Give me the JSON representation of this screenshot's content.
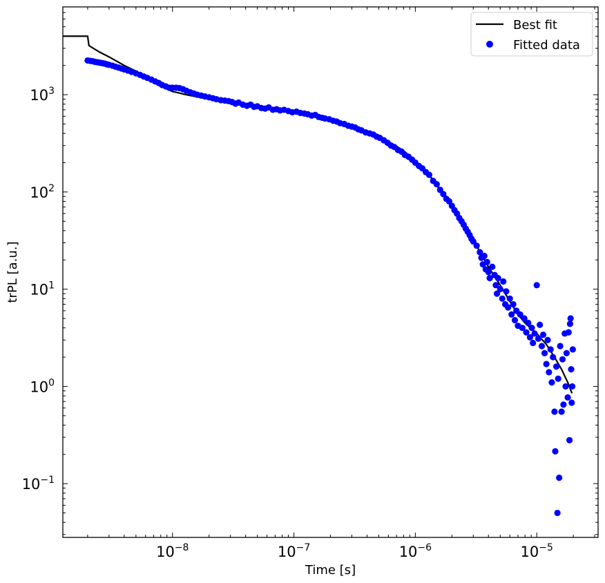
{
  "chart_data": {
    "type": "scatter",
    "title": "",
    "xlabel": "Time [s]",
    "ylabel": "trPL [a.u.]",
    "xscale": "log",
    "yscale": "log",
    "xlim": [
      1.25e-09,
      3.2e-05
    ],
    "ylim": [
      0.028,
      8000
    ],
    "grid": false,
    "legend_position": "top-right",
    "x_ticks": [
      {
        "value": 1e-08,
        "base": "10",
        "exp": "−8"
      },
      {
        "value": 1e-07,
        "base": "10",
        "exp": "−7"
      },
      {
        "value": 1e-06,
        "base": "10",
        "exp": "−6"
      },
      {
        "value": 1e-05,
        "base": "10",
        "exp": "−5"
      }
    ],
    "y_ticks": [
      {
        "value": 0.1,
        "base": "10",
        "exp": "−1"
      },
      {
        "value": 1,
        "base": "10",
        "exp": "0"
      },
      {
        "value": 10,
        "base": "10",
        "exp": "1"
      },
      {
        "value": 100,
        "base": "10",
        "exp": "2"
      },
      {
        "value": 1000,
        "base": "10",
        "exp": "3"
      }
    ],
    "series": [
      {
        "name": "Best fit",
        "kind": "line",
        "color": "#000000",
        "points": [
          [
            1.25e-09,
            4000
          ],
          [
            2e-09,
            4000
          ],
          [
            2.05e-09,
            3200
          ],
          [
            2.5e-09,
            2750
          ],
          [
            3e-09,
            2450
          ],
          [
            4e-09,
            2000
          ],
          [
            5e-09,
            1750
          ],
          [
            6e-09,
            1520
          ],
          [
            7e-09,
            1350
          ],
          [
            8e-09,
            1220
          ],
          [
            1e-08,
            1080
          ],
          [
            1.3e-08,
            1000
          ],
          [
            1.6e-08,
            950
          ],
          [
            2e-08,
            900
          ],
          [
            2.5e-08,
            875
          ],
          [
            3e-08,
            850
          ],
          [
            4e-08,
            800
          ],
          [
            5e-08,
            770
          ],
          [
            7e-08,
            720
          ],
          [
            1e-07,
            670
          ],
          [
            1.5e-07,
            610
          ],
          [
            2e-07,
            560
          ],
          [
            2.5e-07,
            520
          ],
          [
            3e-07,
            480
          ],
          [
            4e-07,
            420
          ],
          [
            5e-07,
            370
          ],
          [
            6e-07,
            330
          ],
          [
            7e-07,
            295
          ],
          [
            8e-07,
            265
          ],
          [
            1e-06,
            210
          ],
          [
            1.3e-06,
            150
          ],
          [
            1.6e-06,
            105
          ],
          [
            2e-06,
            70
          ],
          [
            2.5e-06,
            46
          ],
          [
            3e-06,
            32
          ],
          [
            4e-06,
            17
          ],
          [
            5e-06,
            11
          ],
          [
            6e-06,
            7.5
          ],
          [
            7e-06,
            5.5
          ],
          [
            8e-06,
            4.5
          ],
          [
            1e-05,
            3.5
          ],
          [
            1.2e-05,
            2.7
          ],
          [
            1.4e-05,
            2.0
          ],
          [
            1.6e-05,
            1.5
          ],
          [
            1.8e-05,
            1.1
          ],
          [
            1.95e-05,
            0.85
          ]
        ]
      },
      {
        "name": "Fitted data",
        "kind": "scatter",
        "color": "#0000ff",
        "points": [
          [
            2e-09,
            2250
          ],
          [
            2.1e-09,
            2230
          ],
          [
            2.2e-09,
            2210
          ],
          [
            2.3e-09,
            2180
          ],
          [
            2.4e-09,
            2160
          ],
          [
            2.5e-09,
            2140
          ],
          [
            2.6e-09,
            2120
          ],
          [
            2.7e-09,
            2100
          ],
          [
            2.8e-09,
            2080
          ],
          [
            2.9e-09,
            2050
          ],
          [
            3e-09,
            2030
          ],
          [
            3.2e-09,
            1990
          ],
          [
            3.4e-09,
            1940
          ],
          [
            3.6e-09,
            1900
          ],
          [
            3.8e-09,
            1860
          ],
          [
            4e-09,
            1820
          ],
          [
            4.3e-09,
            1770
          ],
          [
            4.6e-09,
            1720
          ],
          [
            5e-09,
            1660
          ],
          [
            5.4e-09,
            1600
          ],
          [
            5.8e-09,
            1540
          ],
          [
            6.2e-09,
            1490
          ],
          [
            6.7e-09,
            1430
          ],
          [
            7.2e-09,
            1370
          ],
          [
            7.7e-09,
            1320
          ],
          [
            8.2e-09,
            1260
          ],
          [
            8.8e-09,
            1220
          ],
          [
            9.4e-09,
            1180
          ],
          [
            1e-08,
            1180
          ],
          [
            1.07e-08,
            1180
          ],
          [
            1.14e-08,
            1170
          ],
          [
            1.22e-08,
            1140
          ],
          [
            1.3e-08,
            1100
          ],
          [
            1.4e-08,
            1060
          ],
          [
            1.5e-08,
            1030
          ],
          [
            1.6e-08,
            1000
          ],
          [
            1.72e-08,
            980
          ],
          [
            1.85e-08,
            960
          ],
          [
            2e-08,
            940
          ],
          [
            2.15e-08,
            920
          ],
          [
            2.3e-08,
            900
          ],
          [
            2.5e-08,
            880
          ],
          [
            2.7e-08,
            870
          ],
          [
            2.9e-08,
            860
          ],
          [
            3.1e-08,
            840
          ],
          [
            3.3e-08,
            810
          ],
          [
            3.5e-08,
            830
          ],
          [
            3.8e-08,
            790
          ],
          [
            4.1e-08,
            770
          ],
          [
            4.4e-08,
            790
          ],
          [
            4.7e-08,
            750
          ],
          [
            5e-08,
            760
          ],
          [
            5.4e-08,
            730
          ],
          [
            5.8e-08,
            720
          ],
          [
            6.2e-08,
            740
          ],
          [
            6.7e-08,
            700
          ],
          [
            7.2e-08,
            710
          ],
          [
            7.7e-08,
            690
          ],
          [
            8.3e-08,
            700
          ],
          [
            9e-08,
            680
          ],
          [
            9.7e-08,
            660
          ],
          [
            1.05e-07,
            670
          ],
          [
            1.13e-07,
            650
          ],
          [
            1.22e-07,
            640
          ],
          [
            1.3e-07,
            630
          ],
          [
            1.4e-07,
            610
          ],
          [
            1.5e-07,
            620
          ],
          [
            1.6e-07,
            590
          ],
          [
            1.7e-07,
            580
          ],
          [
            1.8e-07,
            570
          ],
          [
            1.95e-07,
            560
          ],
          [
            2.1e-07,
            540
          ],
          [
            2.25e-07,
            530
          ],
          [
            2.4e-07,
            510
          ],
          [
            2.6e-07,
            500
          ],
          [
            2.8e-07,
            480
          ],
          [
            3e-07,
            470
          ],
          [
            3.2e-07,
            460
          ],
          [
            3.4e-07,
            440
          ],
          [
            3.6e-07,
            430
          ],
          [
            3.9e-07,
            410
          ],
          [
            4.2e-07,
            400
          ],
          [
            4.5e-07,
            390
          ],
          [
            4.8e-07,
            370
          ],
          [
            5.1e-07,
            360
          ],
          [
            5.5e-07,
            340
          ],
          [
            5.9e-07,
            320
          ],
          [
            6.3e-07,
            300
          ],
          [
            6.7e-07,
            290
          ],
          [
            7.2e-07,
            270
          ],
          [
            7.7e-07,
            260
          ],
          [
            8.2e-07,
            240
          ],
          [
            8.8e-07,
            230
          ],
          [
            9.4e-07,
            215
          ],
          [
            1e-06,
            200
          ],
          [
            1.07e-06,
            185
          ],
          [
            1.14e-06,
            175
          ],
          [
            1.22e-06,
            160
          ],
          [
            1.3e-06,
            150
          ],
          [
            1.4e-06,
            130
          ],
          [
            1.5e-06,
            120
          ],
          [
            1.6e-06,
            105
          ],
          [
            1.7e-06,
            95
          ],
          [
            1.8e-06,
            85
          ],
          [
            1.9e-06,
            80
          ],
          [
            2e-06,
            72
          ],
          [
            2.1e-06,
            65
          ],
          [
            2.2e-06,
            60
          ],
          [
            2.3e-06,
            54
          ],
          [
            2.4e-06,
            50
          ],
          [
            2.5e-06,
            46
          ],
          [
            2.6e-06,
            42
          ],
          [
            2.7e-06,
            39
          ],
          [
            2.8e-06,
            36
          ],
          [
            2.9e-06,
            33
          ],
          [
            3e-06,
            31
          ],
          [
            3.2e-06,
            28
          ],
          [
            3.4e-06,
            24
          ],
          [
            3.5e-06,
            21
          ],
          [
            3.6e-06,
            18
          ],
          [
            3.7e-06,
            22
          ],
          [
            3.8e-06,
            16
          ],
          [
            3.9e-06,
            19
          ],
          [
            4e-06,
            15
          ],
          [
            4.1e-06,
            13
          ],
          [
            4.3e-06,
            17
          ],
          [
            4.5e-06,
            14
          ],
          [
            4.6e-06,
            11
          ],
          [
            4.7e-06,
            9
          ],
          [
            4.8e-06,
            13
          ],
          [
            5e-06,
            10
          ],
          [
            5.2e-06,
            8
          ],
          [
            5.3e-06,
            12
          ],
          [
            5.5e-06,
            7
          ],
          [
            5.6e-06,
            9.5
          ],
          [
            5.8e-06,
            6.5
          ],
          [
            6e-06,
            8
          ],
          [
            6.2e-06,
            5.5
          ],
          [
            6.4e-06,
            7
          ],
          [
            6.6e-06,
            4.8
          ],
          [
            6.8e-06,
            6
          ],
          [
            7e-06,
            4.2
          ],
          [
            7.3e-06,
            5.5
          ],
          [
            7.6e-06,
            4
          ],
          [
            7.9e-06,
            5
          ],
          [
            8.2e-06,
            3.6
          ],
          [
            8.5e-06,
            4.5
          ],
          [
            8.8e-06,
            3.2
          ],
          [
            9.1e-06,
            4
          ],
          [
            9.3e-06,
            2.8
          ],
          [
            9.6e-06,
            3.5
          ],
          [
            1e-05,
            11
          ],
          [
            1.03e-05,
            3.1
          ],
          [
            1.06e-05,
            4.3
          ],
          [
            1.1e-05,
            2.6
          ],
          [
            1.13e-05,
            3.4
          ],
          [
            1.16e-05,
            2.2
          ],
          [
            1.2e-05,
            1.7
          ],
          [
            1.23e-05,
            3.0
          ],
          [
            1.26e-05,
            1.4
          ],
          [
            1.3e-05,
            2.4
          ],
          [
            1.33e-05,
            1.1
          ],
          [
            1.36e-05,
            2.0
          ],
          [
            1.4e-05,
            0.55
          ],
          [
            1.42e-05,
            0.215
          ],
          [
            1.45e-05,
            1.6
          ],
          [
            1.48e-05,
            0.05
          ],
          [
            1.5e-05,
            1.2
          ],
          [
            1.53e-05,
            0.115
          ],
          [
            1.56e-05,
            2.6
          ],
          [
            1.6e-05,
            0.55
          ],
          [
            1.63e-05,
            1.9
          ],
          [
            1.66e-05,
            0.65
          ],
          [
            1.7e-05,
            3.5
          ],
          [
            1.73e-05,
            1.0
          ],
          [
            1.76e-05,
            2.2
          ],
          [
            1.8e-05,
            0.77
          ],
          [
            1.83e-05,
            3.6
          ],
          [
            1.86e-05,
            0.28
          ],
          [
            1.88e-05,
            4.4
          ],
          [
            1.9e-05,
            5.0
          ],
          [
            1.92e-05,
            1.5
          ],
          [
            1.94e-05,
            0.68
          ],
          [
            1.96e-05,
            1.0
          ],
          [
            1.98e-05,
            2.4
          ]
        ]
      }
    ]
  }
}
